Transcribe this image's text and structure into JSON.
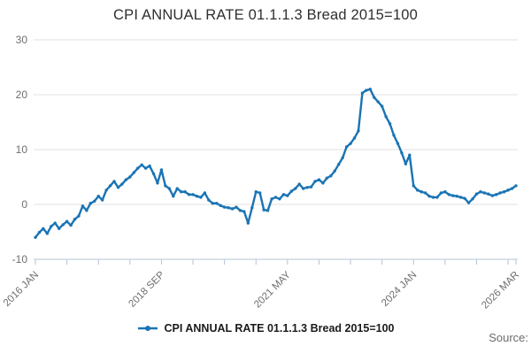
{
  "title": "CPI ANNUAL RATE 01.1.1.3 Bread 2015=100",
  "legend": {
    "label": "CPI ANNUAL RATE 01.1.1.3 Bread 2015=100"
  },
  "source_label": "Source:",
  "colors": {
    "line": "#1a74b4",
    "grid": "#e1e1e1",
    "axis": "#b4c4d4",
    "tick_text": "#6e6e6e",
    "title_text": "#2f2f2f"
  },
  "chart_data": {
    "type": "line",
    "title": "CPI ANNUAL RATE 01.1.1.3 Bread 2015=100",
    "xlabel": "",
    "ylabel": "",
    "x_start": "2016 JAN",
    "x_end": "2026 MAR",
    "x_frequency": "monthly",
    "ylim": [
      -10,
      30
    ],
    "y_ticks": [
      30,
      20,
      10,
      0,
      -10
    ],
    "x_minor_tick_indices": [
      0,
      8,
      16,
      24,
      32,
      40,
      48,
      56,
      64,
      72,
      80,
      88,
      96,
      104,
      112,
      120,
      122
    ],
    "x_label_ticks": [
      {
        "index": 0,
        "label": "2016 JAN"
      },
      {
        "index": 32,
        "label": "2018 SEP"
      },
      {
        "index": 64,
        "label": "2021 MAY"
      },
      {
        "index": 96,
        "label": "2024 JAN"
      },
      {
        "index": 122,
        "label": "2026 MAR"
      }
    ],
    "grid": "horizontal-only",
    "legend_position": "bottom-center",
    "series": [
      {
        "name": "CPI ANNUAL RATE 01.1.1.3 Bread 2015=100",
        "values": [
          -6.0,
          -5.1,
          -4.4,
          -5.3,
          -4.0,
          -3.4,
          -4.4,
          -3.7,
          -3.1,
          -3.8,
          -2.7,
          -2.1,
          -0.3,
          -1.1,
          0.2,
          0.6,
          1.5,
          0.8,
          2.6,
          3.4,
          4.2,
          3.1,
          3.7,
          4.5,
          5.0,
          5.8,
          6.6,
          7.2,
          6.6,
          7.0,
          5.6,
          3.9,
          6.3,
          3.4,
          2.9,
          1.5,
          2.9,
          2.3,
          2.3,
          1.8,
          1.8,
          1.5,
          1.3,
          2.1,
          0.8,
          0.2,
          0.2,
          -0.2,
          -0.5,
          -0.6,
          -0.8,
          -0.5,
          -1.1,
          -1.3,
          -3.4,
          -0.6,
          2.3,
          2.1,
          -1.0,
          -1.1,
          1.0,
          1.3,
          1.0,
          1.8,
          1.6,
          2.4,
          2.9,
          3.7,
          2.9,
          3.1,
          3.2,
          4.2,
          4.5,
          3.9,
          4.8,
          5.2,
          6.1,
          7.3,
          8.5,
          10.5,
          11.1,
          12.1,
          13.4,
          20.3,
          20.8,
          21.0,
          19.5,
          18.7,
          17.9,
          16.0,
          14.7,
          12.6,
          11.1,
          9.4,
          7.4,
          9.0,
          3.4,
          2.6,
          2.3,
          2.1,
          1.5,
          1.3,
          1.3,
          2.1,
          2.3,
          1.8,
          1.6,
          1.5,
          1.3,
          1.1,
          0.3,
          1.0,
          1.9,
          2.3,
          2.1,
          1.9,
          1.6,
          1.8,
          2.1,
          2.3,
          2.6,
          2.9,
          3.4
        ]
      }
    ]
  }
}
